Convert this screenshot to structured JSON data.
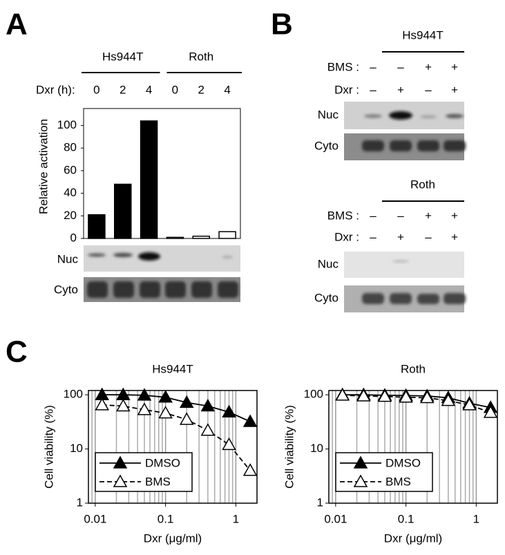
{
  "panels": [
    "A",
    "B",
    "C"
  ],
  "chart_data": [
    {
      "type": "bar",
      "ylabel": "Relative activation",
      "category_label": "Dxr (h):",
      "groups": [
        "Hs944T",
        "Roth"
      ],
      "categories": [
        "0",
        "2",
        "4",
        "0",
        "2",
        "4"
      ],
      "values": [
        21,
        48,
        104,
        1,
        2,
        6
      ],
      "colors": [
        "#000000",
        "#000000",
        "#000000",
        "#ffffff",
        "#ffffff",
        "#ffffff"
      ],
      "ylim": [
        0,
        115
      ],
      "yticks": [
        0,
        20,
        40,
        60,
        80,
        100
      ],
      "blot_rows": [
        "Nuc",
        "Cyto"
      ]
    },
    {
      "type": "line",
      "title": "Hs944T",
      "xlabel": "Dxr (μg/ml)",
      "ylabel": "Cell viability (%)",
      "x": [
        0.0125,
        0.025,
        0.05,
        0.1,
        0.2,
        0.4,
        0.8,
        1.6
      ],
      "series": [
        {
          "name": "DMSO",
          "color": "#000000",
          "marker": "filled",
          "dash": false,
          "values": [
            100,
            100,
            98,
            90,
            72,
            62,
            48,
            32
          ]
        },
        {
          "name": "BMS",
          "color": "#000000",
          "marker": "open",
          "dash": true,
          "values": [
            65,
            62,
            53,
            46,
            35,
            22,
            12,
            4
          ]
        }
      ],
      "xlim": [
        0.008,
        2
      ],
      "ylim": [
        1,
        120
      ],
      "xticks": [
        0.01,
        0.1,
        1
      ],
      "yticks": [
        1,
        10,
        100
      ],
      "log_x": true,
      "log_y": true,
      "grid": true,
      "legend": "lower-left"
    },
    {
      "type": "line",
      "title": "Roth",
      "xlabel": "Dxr (μg/ml)",
      "ylabel": "Cell viability (%)",
      "x": [
        0.0125,
        0.025,
        0.05,
        0.1,
        0.2,
        0.4,
        0.8,
        1.6
      ],
      "series": [
        {
          "name": "DMSO",
          "color": "#000000",
          "marker": "filled",
          "dash": false,
          "values": [
            100,
            100,
            98,
            97,
            95,
            88,
            70,
            58
          ]
        },
        {
          "name": "BMS",
          "color": "#000000",
          "marker": "open",
          "dash": true,
          "values": [
            98,
            95,
            93,
            90,
            88,
            78,
            65,
            47
          ]
        }
      ],
      "xlim": [
        0.008,
        2
      ],
      "ylim": [
        1,
        120
      ],
      "xticks": [
        0.01,
        0.1,
        1
      ],
      "yticks": [
        1,
        10,
        100
      ],
      "log_x": true,
      "log_y": true,
      "grid": true,
      "legend": "lower-left"
    }
  ],
  "panel_b": {
    "blocks": [
      {
        "title": "Hs944T",
        "rows": [
          {
            "label": "BMS :",
            "marks": [
              "–",
              "–",
              "+",
              "+"
            ]
          },
          {
            "label": "Dxr :",
            "marks": [
              "–",
              "+",
              "–",
              "+"
            ]
          }
        ],
        "blots": [
          "Nuc",
          "Cyto"
        ]
      },
      {
        "title": "Roth",
        "rows": [
          {
            "label": "BMS :",
            "marks": [
              "–",
              "–",
              "+",
              "+"
            ]
          },
          {
            "label": "Dxr :",
            "marks": [
              "–",
              "+",
              "–",
              "+"
            ]
          }
        ],
        "blots": [
          "Nuc",
          "Cyto"
        ]
      }
    ]
  }
}
